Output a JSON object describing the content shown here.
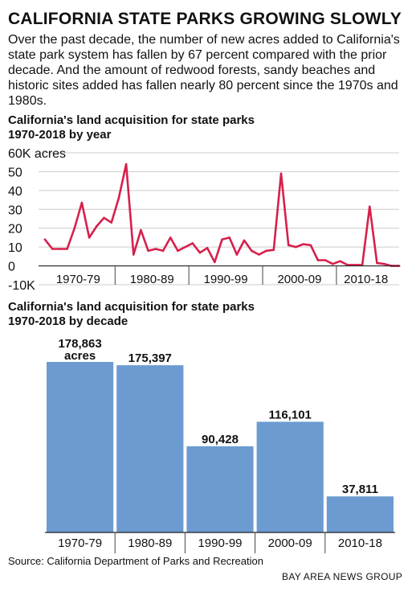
{
  "title": "CALIFORNIA STATE PARKS GROWING SLOWLY",
  "dek": "Over the past decade, the number of new acres added to California's state park system has fallen by 67 percent compared with the prior decade. And the amount of redwood forests, sandy beaches and historic sites added has fallen nearly 80 percent since the 1970s and 1980s.",
  "line_chart_title": [
    "California's land acquisition for state parks",
    "1970-2018 by year"
  ],
  "bar_chart_title": [
    "California's land acquisition for state parks",
    "1970-2018 by decade"
  ],
  "source": "Source: California Department of Parks and Recreation",
  "credit": "BAY AREA NEWS GROUP",
  "colors": {
    "line": "#d6204c",
    "bar": "#6b9bd1",
    "grid": "#cccccc"
  },
  "chart_data": [
    {
      "type": "line",
      "x": [
        1970,
        1971,
        1972,
        1973,
        1974,
        1975,
        1976,
        1977,
        1978,
        1979,
        1980,
        1981,
        1982,
        1983,
        1984,
        1985,
        1986,
        1987,
        1988,
        1989,
        1990,
        1991,
        1992,
        1993,
        1994,
        1995,
        1996,
        1997,
        1998,
        1999,
        2000,
        2001,
        2002,
        2003,
        2004,
        2005,
        2006,
        2007,
        2008,
        2009,
        2010,
        2011,
        2012,
        2013,
        2014,
        2015,
        2016,
        2017,
        2018
      ],
      "values": [
        14,
        9,
        9,
        9,
        20,
        33.5,
        15,
        21,
        25.5,
        23,
        36,
        54,
        6,
        19,
        8,
        9,
        8,
        15,
        8,
        10,
        12,
        7,
        9.5,
        2,
        14,
        15,
        6,
        13.5,
        8,
        6,
        8,
        8.5,
        49,
        11,
        10,
        11.5,
        11,
        3,
        3,
        1,
        2.5,
        0.5,
        0.5,
        0.5,
        31.5,
        1.5,
        1,
        0,
        0
      ],
      "y_tick_labels": [
        "60K acres",
        "50",
        "40",
        "30",
        "20",
        "10",
        "0",
        "-10K"
      ],
      "y_ticks": [
        60,
        50,
        40,
        30,
        20,
        10,
        0,
        -10
      ],
      "ylim": [
        -10,
        60
      ],
      "x_tick_labels": [
        "1970-79",
        "1980-89",
        "1990-99",
        "2000-09",
        "2010-18"
      ],
      "grid": true
    },
    {
      "type": "bar",
      "categories": [
        "1970-79",
        "1980-89",
        "1990-99",
        "2000-09",
        "2010-18"
      ],
      "values": [
        178863,
        175397,
        90428,
        116101,
        37811
      ],
      "labels": [
        "178,863",
        "175,397",
        "90,428",
        "116,101",
        "37,811"
      ],
      "first_label_unit": "acres"
    }
  ]
}
